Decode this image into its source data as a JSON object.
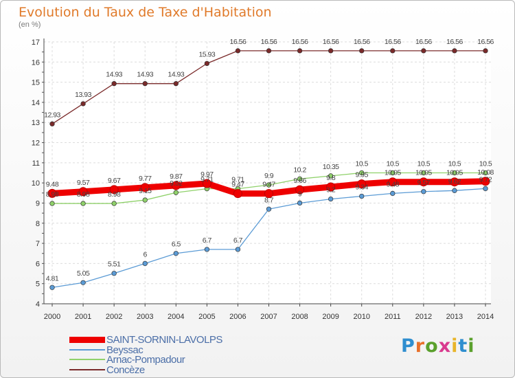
{
  "header": {
    "title": "Evolution du Taux de Taxe d'Habitation",
    "unit": "(en %)"
  },
  "brand": {
    "text": "Proxiti",
    "colors": [
      "#2f8ecf",
      "#e8702a",
      "#5aa02c",
      "#d93a8e",
      "#e8b52a",
      "#2f8ecf",
      "#5aa02c"
    ]
  },
  "chart_data": {
    "type": "line",
    "x": [
      "2000",
      "2001",
      "2002",
      "2003",
      "2004",
      "2005",
      "2006",
      "2007",
      "2008",
      "2009",
      "2010",
      "2011",
      "2012",
      "2013",
      "2014"
    ],
    "ylim": [
      4,
      17
    ],
    "yticks": [
      "4",
      "5",
      "6",
      "7",
      "8",
      "9",
      "10",
      "11",
      "12",
      "13",
      "14",
      "15",
      "16",
      "17"
    ],
    "grid": true,
    "legend_position": "bottom-left",
    "series": [
      {
        "name": "SAINT-SORNIN-LAVOLPS",
        "color": "#ee0000",
        "values": [
          9.48,
          9.57,
          9.67,
          9.77,
          9.87,
          9.97,
          9.47,
          9.47,
          9.66,
          9.8,
          9.95,
          10.05,
          10.05,
          10.05,
          10.08
        ],
        "labels": [
          "9.48",
          "9.57",
          "9.67",
          "9.77",
          "9.87",
          "9.97",
          "9.47",
          "9.47",
          "9.66",
          "9.8",
          "9.95",
          "10.05",
          "10.05",
          "10.05",
          "10.08"
        ]
      },
      {
        "name": "Beyssac",
        "color": "#5b9bd5",
        "values": [
          4.81,
          5.05,
          5.51,
          6,
          6.5,
          6.7,
          6.7,
          8.7,
          9,
          9.2,
          9.34,
          9.48,
          9.57,
          9.62,
          9.72
        ],
        "labels": [
          "4.81",
          "5.05",
          "5.51",
          "6",
          "6.5",
          "6.7",
          "6.7",
          "8.7",
          "9",
          "9.2",
          "9.34",
          "9.48",
          "9.57",
          "9.62",
          "9.72"
        ]
      },
      {
        "name": "Arnac-Pompadour",
        "color": "#8fd16a",
        "values": [
          8.98,
          8.98,
          8.98,
          9.15,
          9.52,
          9.71,
          9.71,
          9.9,
          10.2,
          10.35,
          10.5,
          10.5,
          10.5,
          10.5,
          10.5
        ],
        "labels": [
          "8.98",
          "8.98",
          "8.98",
          "9.15",
          "9.52",
          "9.71",
          "9.71",
          "9.9",
          "10.2",
          "10.35",
          "10.5",
          "10.5",
          "10.5",
          "10.5",
          "10.5"
        ]
      },
      {
        "name": "Concèze",
        "color": "#7a2a2a",
        "values": [
          12.93,
          13.93,
          14.93,
          14.93,
          14.93,
          15.93,
          16.56,
          16.56,
          16.56,
          16.56,
          16.56,
          16.56,
          16.56,
          16.56,
          16.56
        ],
        "labels": [
          "12.93",
          "13.93",
          "14.93",
          "14.93",
          "14.93",
          "15.93",
          "16.56",
          "16.56",
          "16.56",
          "16.56",
          "16.56",
          "16.56",
          "16.56",
          "16.56",
          "16.56"
        ]
      }
    ]
  }
}
